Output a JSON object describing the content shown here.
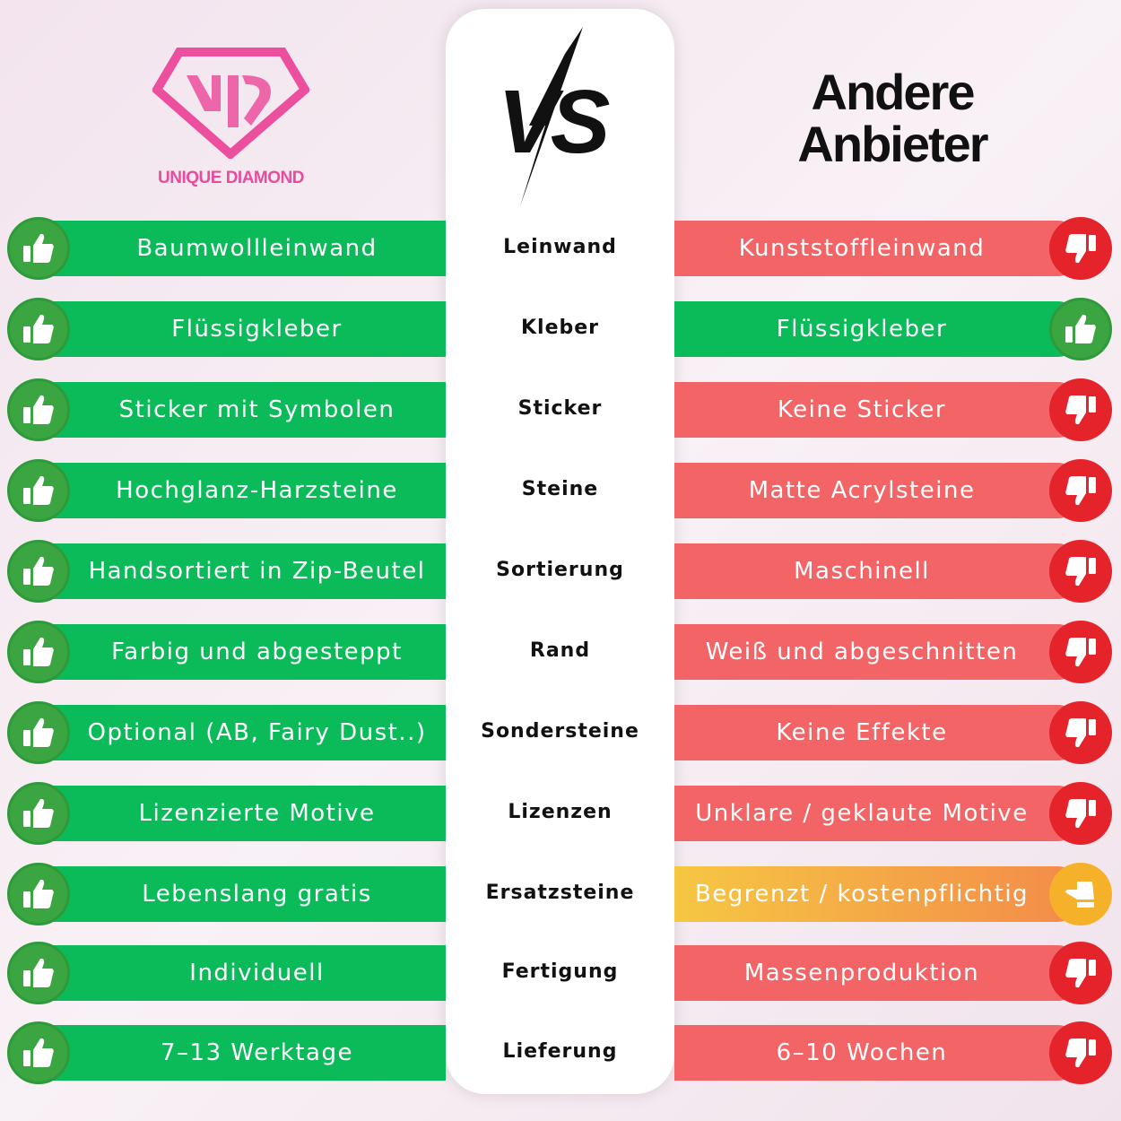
{
  "brand": {
    "name": "UNIQUE DIAMOND",
    "logo_letters": "UD",
    "color": "#e84c9b"
  },
  "vs_label": "VS",
  "other_title": [
    "Andere",
    "Anbieter"
  ],
  "colors": {
    "good": "#0bba59",
    "bad": "#f26466",
    "bad_icon": "#e5232b",
    "neutral": "#f5b12a"
  },
  "rows": [
    {
      "category": "Leinwand",
      "ours": "Baumwollleinwand",
      "theirs": "Kunststoffleinwand",
      "theirs_rating": "bad"
    },
    {
      "category": "Kleber",
      "ours": "Flüssigkleber",
      "theirs": "Flüssigkleber",
      "theirs_rating": "good"
    },
    {
      "category": "Sticker",
      "ours": "Sticker mit Symbolen",
      "theirs": "Keine Sticker",
      "theirs_rating": "bad"
    },
    {
      "category": "Steine",
      "ours": "Hochglanz-Harzsteine",
      "theirs": "Matte Acrylsteine",
      "theirs_rating": "bad"
    },
    {
      "category": "Sortierung",
      "ours": "Handsortiert in Zip-Beutel",
      "theirs": "Maschinell",
      "theirs_rating": "bad"
    },
    {
      "category": "Rand",
      "ours": "Farbig und abgesteppt",
      "theirs": "Weiß und abgeschnitten",
      "theirs_rating": "bad"
    },
    {
      "category": "Sondersteine",
      "ours": "Optional (AB, Fairy Dust..)",
      "theirs": "Keine Effekte",
      "theirs_rating": "bad"
    },
    {
      "category": "Lizenzen",
      "ours": "Lizenzierte Motive",
      "theirs": "Unklare / geklaute Motive",
      "theirs_rating": "bad"
    },
    {
      "category": "Ersatzsteine",
      "ours": "Lebenslang gratis",
      "theirs": "Begrenzt / kostenpflichtig",
      "theirs_rating": "neutral"
    },
    {
      "category": "Fertigung",
      "ours": "Individuell",
      "theirs": "Massenproduktion",
      "theirs_rating": "bad"
    },
    {
      "category": "Lieferung",
      "ours": "7–13 Werktage",
      "theirs": "6–10 Wochen",
      "theirs_rating": "bad"
    }
  ]
}
